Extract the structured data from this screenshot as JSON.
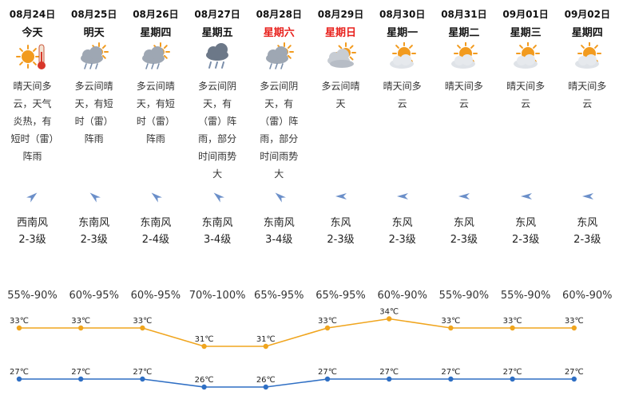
{
  "days": [
    {
      "date": "08月24日",
      "name": "今天",
      "weekend": false,
      "icon": "sun-thermometer-icon",
      "desc": "晴天间多云，天气炎热，有短时（雷）阵雨",
      "wind_dir": "西南风",
      "wind_level": "2-3级",
      "wind_arrow": "northeast",
      "humidity": "55%-90%"
    },
    {
      "date": "08月25日",
      "name": "明天",
      "weekend": false,
      "icon": "cloud-rain-icon",
      "desc": "多云间晴天，有短时（雷）阵雨",
      "wind_dir": "东南风",
      "wind_level": "2-3级",
      "wind_arrow": "northwest",
      "humidity": "60%-95%"
    },
    {
      "date": "08月26日",
      "name": "星期四",
      "weekend": false,
      "icon": "cloud-rain-icon",
      "desc": "多云间晴天，有短时（雷）阵雨",
      "wind_dir": "东南风",
      "wind_level": "2-4级",
      "wind_arrow": "northwest",
      "humidity": "60%-95%"
    },
    {
      "date": "08月27日",
      "name": "星期五",
      "weekend": false,
      "icon": "thunder-rain-icon",
      "desc": "多云间阴天，有（雷）阵雨，部分时间雨势大",
      "wind_dir": "东南风",
      "wind_level": "3-4级",
      "wind_arrow": "northwest",
      "humidity": "70%-100%"
    },
    {
      "date": "08月28日",
      "name": "星期六",
      "weekend": true,
      "icon": "cloud-rain-icon",
      "desc": "多云间阴天，有（雷）阵雨，部分时间雨势大",
      "wind_dir": "东南风",
      "wind_level": "3-4级",
      "wind_arrow": "northwest",
      "humidity": "65%-95%"
    },
    {
      "date": "08月29日",
      "name": "星期日",
      "weekend": true,
      "icon": "cloud-sun-icon",
      "desc": "多云间晴天",
      "wind_dir": "东风",
      "wind_level": "2-3级",
      "wind_arrow": "west",
      "humidity": "65%-95%"
    },
    {
      "date": "08月30日",
      "name": "星期一",
      "weekend": false,
      "icon": "sun-cloud-icon",
      "desc": "晴天间多云",
      "wind_dir": "东风",
      "wind_level": "2-3级",
      "wind_arrow": "west",
      "humidity": "60%-90%"
    },
    {
      "date": "08月31日",
      "name": "星期二",
      "weekend": false,
      "icon": "sun-cloud-icon",
      "desc": "晴天间多云",
      "wind_dir": "东风",
      "wind_level": "2-3级",
      "wind_arrow": "west",
      "humidity": "55%-90%"
    },
    {
      "date": "09月01日",
      "name": "星期三",
      "weekend": false,
      "icon": "sun-cloud-icon",
      "desc": "晴天间多云",
      "wind_dir": "东风",
      "wind_level": "2-3级",
      "wind_arrow": "west",
      "humidity": "55%-90%"
    },
    {
      "date": "09月02日",
      "name": "星期四",
      "weekend": false,
      "icon": "sun-cloud-icon",
      "desc": "晴天间多云",
      "wind_dir": "东风",
      "wind_level": "2-3级",
      "wind_arrow": "west",
      "humidity": "60%-90%"
    }
  ],
  "chart_data": {
    "type": "line",
    "categories": [
      "08月24日",
      "08月25日",
      "08月26日",
      "08月27日",
      "08月28日",
      "08月29日",
      "08月30日",
      "08月31日",
      "09月01日",
      "09月02日"
    ],
    "series": [
      {
        "values": [
          33,
          33,
          33,
          31,
          31,
          33,
          34,
          33,
          33,
          33
        ],
        "color": "#f0a51e"
      },
      {
        "values": [
          27,
          27,
          27,
          26,
          26,
          27,
          27,
          27,
          27,
          27
        ],
        "color": "#2f6fc4"
      }
    ],
    "unit": "℃"
  },
  "colors": {
    "weekend": "#e8201c",
    "wind_arrow": "#6b8fc9",
    "sun": "#f29b1f",
    "cloud": "#9ea7b3",
    "rain": "#7a8eaa"
  }
}
